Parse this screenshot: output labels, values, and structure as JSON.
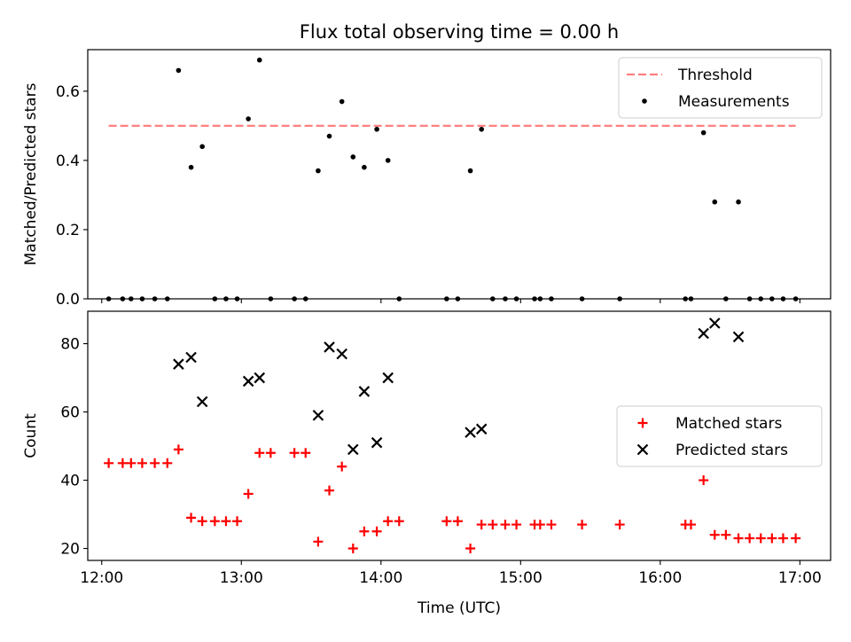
{
  "chart_data": [
    {
      "type": "line",
      "title": "Flux total observing time = 0.00 h",
      "xlabel": "",
      "ylabel": "Matched/Predicted stars",
      "xlim": [
        11.9,
        17.22
      ],
      "ylim": [
        0,
        0.72
      ],
      "x_ticks": [
        12,
        13,
        14,
        15,
        16,
        17
      ],
      "y_ticks": [
        0,
        0.2,
        0.4,
        0.6
      ],
      "y_tick_labels": [
        "0.0",
        "0.2",
        "0.4",
        "0.6"
      ],
      "legend_position": "top-right",
      "series": [
        {
          "name": "Threshold",
          "kind": "line",
          "color": "#ff8080",
          "dash": true,
          "x": [
            12.05,
            16.97
          ],
          "y": [
            0.5,
            0.5
          ]
        },
        {
          "name": "Measurements",
          "kind": "scatter",
          "color": "#000000",
          "x": [
            12.05,
            12.15,
            12.21,
            12.29,
            12.38,
            12.47,
            12.55,
            12.64,
            12.72,
            12.81,
            12.89,
            12.97,
            13.05,
            13.13,
            13.21,
            13.38,
            13.46,
            13.55,
            13.63,
            13.72,
            13.8,
            13.88,
            13.97,
            14.05,
            14.13,
            14.47,
            14.55,
            14.64,
            14.72,
            14.8,
            14.89,
            14.97,
            15.1,
            15.14,
            15.22,
            15.44,
            15.71,
            16.18,
            16.22,
            16.31,
            16.39,
            16.47,
            16.56,
            16.64,
            16.72,
            16.8,
            16.88,
            16.97
          ],
          "y": [
            0.0,
            0.0,
            0.0,
            0.0,
            0.0,
            0.0,
            0.66,
            0.38,
            0.44,
            0.0,
            0.0,
            0.0,
            0.52,
            0.69,
            0.0,
            0.0,
            0.0,
            0.37,
            0.47,
            0.57,
            0.41,
            0.38,
            0.49,
            0.4,
            0.0,
            0.0,
            0.0,
            0.37,
            0.49,
            0.0,
            0.0,
            0.0,
            0.0,
            0.0,
            0.0,
            0.0,
            0.0,
            0.0,
            0.0,
            0.48,
            0.28,
            0.0,
            0.28,
            0.0,
            0.0,
            0.0,
            0.0,
            0.0
          ]
        }
      ]
    },
    {
      "type": "scatter",
      "title": "",
      "xlabel": "Time (UTC)",
      "ylabel": "Count",
      "xlim": [
        11.9,
        17.22
      ],
      "ylim": [
        16.5,
        89.5
      ],
      "x_ticks": [
        12,
        13,
        14,
        15,
        16,
        17
      ],
      "x_tick_labels": [
        "12:00",
        "13:00",
        "14:00",
        "15:00",
        "16:00",
        "17:00"
      ],
      "y_ticks": [
        20,
        40,
        60,
        80
      ],
      "y_tick_labels": [
        "20",
        "40",
        "60",
        "80"
      ],
      "legend_position": "center-right",
      "series": [
        {
          "name": "Matched stars",
          "marker": "plus",
          "color": "#ff0000",
          "x": [
            12.05,
            12.15,
            12.21,
            12.29,
            12.38,
            12.47,
            12.55,
            12.64,
            12.72,
            12.81,
            12.89,
            12.97,
            13.05,
            13.13,
            13.21,
            13.38,
            13.46,
            13.55,
            13.63,
            13.72,
            13.8,
            13.88,
            13.97,
            14.05,
            14.13,
            14.47,
            14.55,
            14.64,
            14.72,
            14.8,
            14.89,
            14.97,
            15.1,
            15.14,
            15.22,
            15.44,
            15.71,
            16.18,
            16.22,
            16.31,
            16.39,
            16.47,
            16.56,
            16.64,
            16.72,
            16.8,
            16.88,
            16.97
          ],
          "y": [
            45,
            45,
            45,
            45,
            45,
            45,
            49,
            29,
            28,
            28,
            28,
            28,
            36,
            48,
            48,
            48,
            48,
            22,
            37,
            44,
            20,
            25,
            25,
            28,
            28,
            28,
            28,
            20,
            27,
            27,
            27,
            27,
            27,
            27,
            27,
            27,
            27,
            27,
            27,
            40,
            24,
            24,
            23,
            23,
            23,
            23,
            23,
            23
          ]
        },
        {
          "name": "Predicted stars",
          "marker": "x",
          "color": "#000000",
          "x": [
            12.55,
            12.64,
            12.72,
            13.05,
            13.13,
            13.55,
            13.63,
            13.72,
            13.8,
            13.88,
            13.97,
            14.05,
            14.64,
            14.72,
            16.31,
            16.39,
            16.56
          ],
          "y": [
            74,
            76,
            63,
            69,
            70,
            59,
            79,
            77,
            49,
            66,
            51,
            70,
            54,
            55,
            83,
            86,
            82
          ]
        }
      ]
    }
  ]
}
